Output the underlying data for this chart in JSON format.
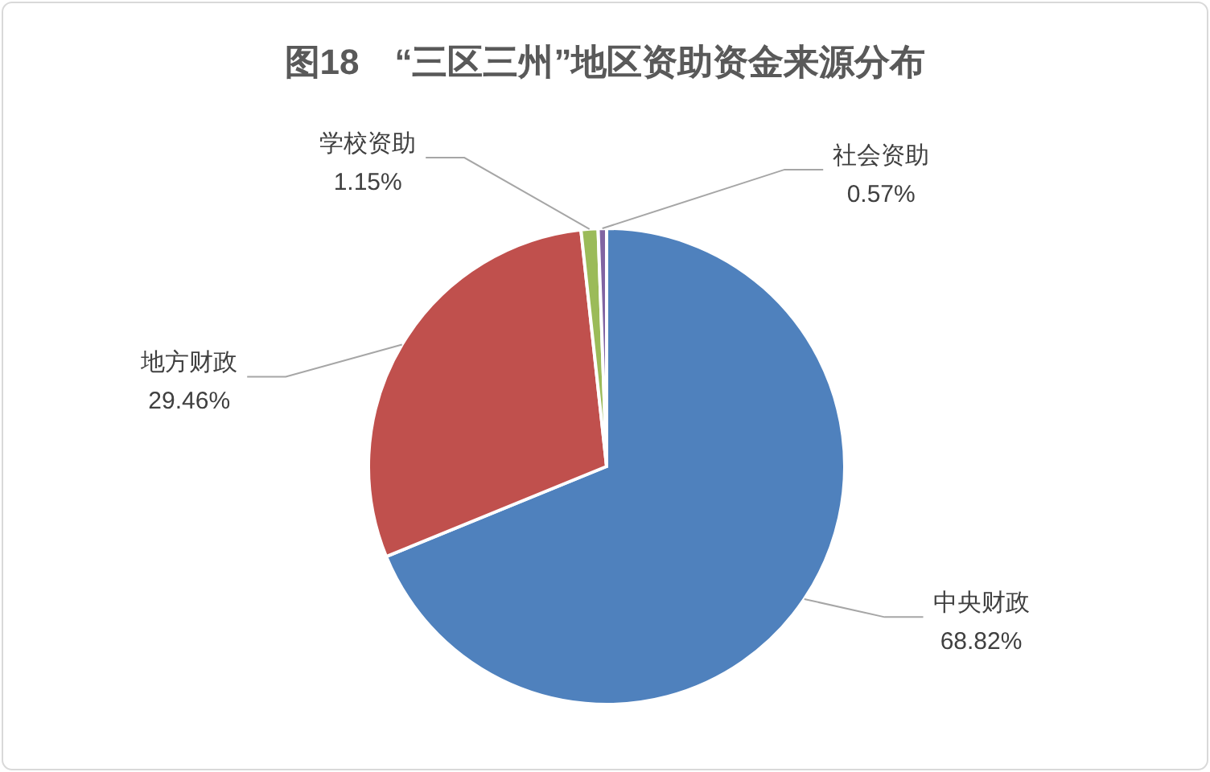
{
  "chart_data": {
    "type": "pie",
    "title": "图18　“三区三州”地区资助资金来源分布",
    "categories": [
      "中央财政",
      "地方财政",
      "学校资助",
      "社会资助"
    ],
    "values": [
      68.82,
      29.46,
      1.15,
      0.57
    ],
    "value_labels": [
      "68.82%",
      "29.46%",
      "1.15%",
      "0.57%"
    ],
    "colors": [
      "#4f81bd",
      "#c0504d",
      "#9bbb59",
      "#8064a2"
    ],
    "legend": false
  }
}
